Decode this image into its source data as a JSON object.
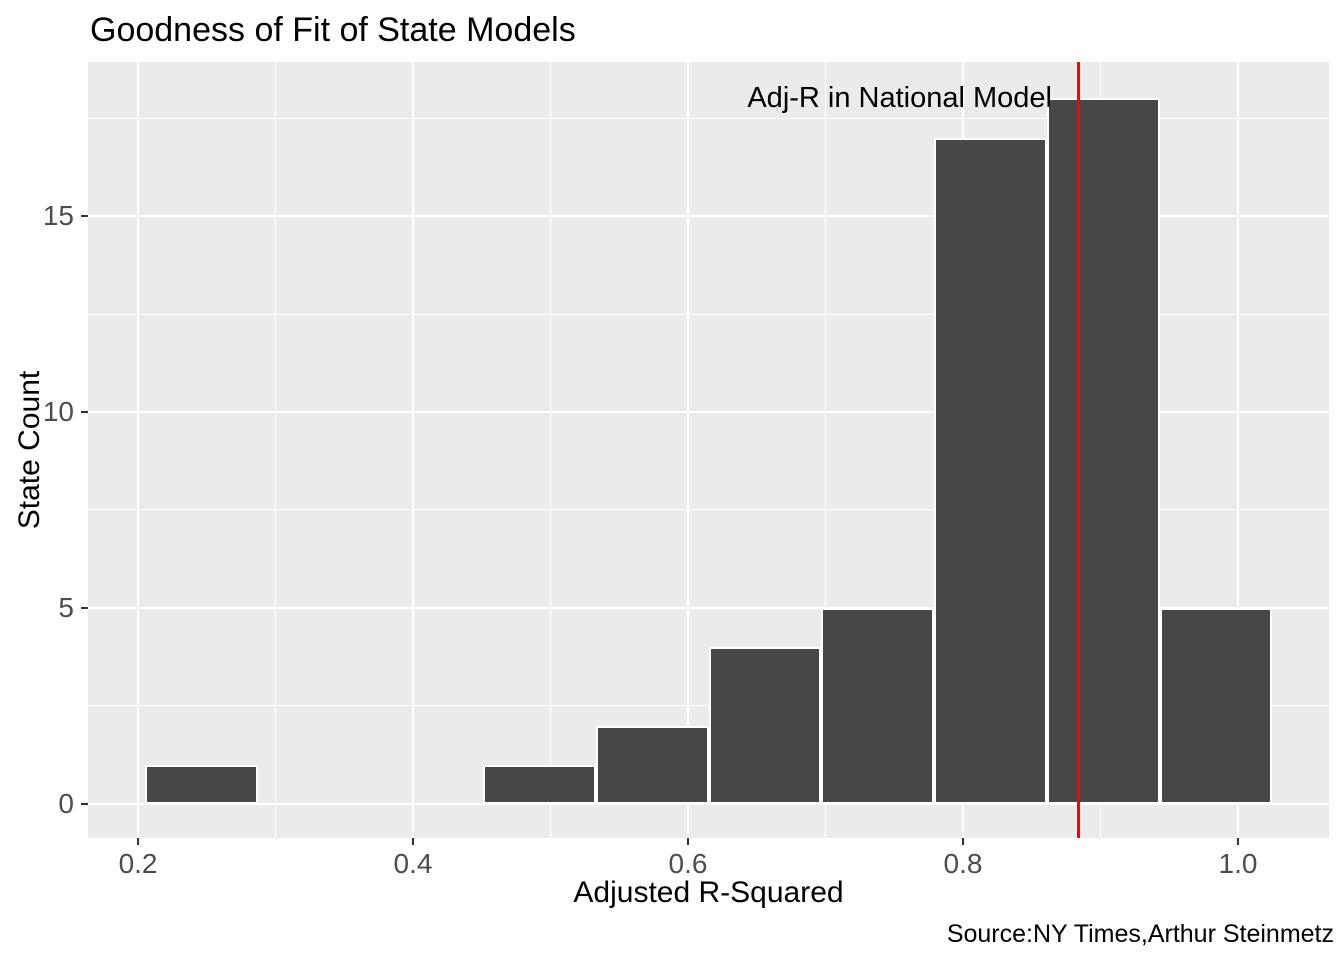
{
  "header": {
    "title": "Goodness of Fit of State Models"
  },
  "caption": "Source:NY Times,Arthur Steinmetz",
  "chart_data": {
    "type": "bar",
    "subtype": "histogram",
    "title": "Goodness of Fit of State Models",
    "xlabel": "Adjusted R-Squared",
    "ylabel": "State Count",
    "caption": "Source:NY Times,Arthur Steinmetz",
    "bin_edges": [
      0.205,
      0.287,
      0.369,
      0.451,
      0.533,
      0.615,
      0.697,
      0.779,
      0.861,
      0.943,
      1.025
    ],
    "counts": [
      1,
      0,
      0,
      1,
      2,
      4,
      5,
      17,
      18,
      5
    ],
    "annotation": {
      "text": "Adj-R in National Model",
      "x": 0.884,
      "y": 18.5,
      "halign": "right"
    },
    "vline": {
      "x": 0.884,
      "color": "#FF0000"
    },
    "x_ticks": [
      0.2,
      0.4,
      0.6,
      0.8,
      1.0
    ],
    "x_tick_labels": [
      "0.2",
      "0.4",
      "0.6",
      "0.8",
      "1.0"
    ],
    "x_minor_ticks": [
      0.3,
      0.5,
      0.7,
      0.9
    ],
    "y_ticks": [
      0,
      5,
      10,
      15
    ],
    "y_tick_labels": [
      "0",
      "5",
      "10",
      "15"
    ],
    "y_minor_ticks": [
      2.5,
      7.5,
      12.5,
      17.5
    ],
    "xlim": [
      0.1636,
      1.0662
    ],
    "ylim": [
      -0.87,
      18.93
    ],
    "grid": true,
    "legend": "none",
    "colors": {
      "bar_fill": "#474747",
      "bar_stroke": "#FFFFFF",
      "panel_bg": "#EBEBEB",
      "grid": "#FFFFFF",
      "vline": "#FF0000",
      "tick_label": "#4D4D4D",
      "tick_mark": "#333333",
      "text": "#000000",
      "page_bg": "#FFFFFF"
    }
  }
}
